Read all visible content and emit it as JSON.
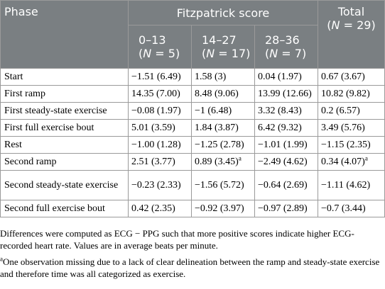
{
  "header": {
    "phase": "Phase",
    "group": "Fitzpatrick score",
    "total_line1": "Total",
    "total_line2": "(N = 29)",
    "subs": [
      {
        "range": "0–13",
        "n": "(N = 5)"
      },
      {
        "range": "14–27",
        "n": "(N = 17)"
      },
      {
        "range": "28–36",
        "n": "(N = 7)"
      }
    ]
  },
  "rows": [
    {
      "phase": "Start",
      "cells": [
        "−1.51 (6.49)",
        "1.58 (3)",
        "0.04 (1.97)",
        "0.67 (3.67)"
      ]
    },
    {
      "phase": "First ramp",
      "cells": [
        "14.35 (7.00)",
        "8.48 (9.06)",
        "13.99 (12.66)",
        "10.82 (9.82)"
      ]
    },
    {
      "phase": "First steady-state exercise",
      "cells": [
        "−0.08 (1.97)",
        "−1 (6.48)",
        "3.32 (8.43)",
        "0.2 (6.57)"
      ]
    },
    {
      "phase": "First full exercise bout",
      "cells": [
        "5.01 (3.59)",
        "1.84 (3.87)",
        "6.42 (9.32)",
        "3.49 (5.76)"
      ]
    },
    {
      "phase": "Rest",
      "cells": [
        "−1.00 (1.28)",
        "−1.25 (2.78)",
        "−1.01 (1.99)",
        "−1.15 (2.35)"
      ]
    },
    {
      "phase": "Second ramp",
      "cells": [
        "2.51 (3.77)",
        "0.89 (3.45)",
        "−2.49 (4.62)",
        "0.34 (4.07)"
      ]
    },
    {
      "phase": "Second steady-state exercise",
      "cells": [
        "−0.23 (2.33)",
        "−1.56 (5.72)",
        "−0.64 (2.69)",
        "−1.11 (4.62)"
      ]
    },
    {
      "phase": "Second full exercise bout",
      "cells": [
        "0.42 (2.35)",
        "−0.92 (3.97)",
        "−0.97 (2.89)",
        "−0.7 (3.44)"
      ]
    }
  ],
  "footnote_marker": "a",
  "notes": {
    "main": "Differences were computed as ECG − PPG such that more positive scores indicate higher ECG-recorded heart rate. Values are in average beats per minute.",
    "footnote": "One observation missing due to a lack of clear delineation between the ramp and steady-state exercise and therefore time was all categorized as exercise."
  },
  "colors": {
    "header_bg": "#7a7f82",
    "header_text": "#ffffff",
    "border": "#9a9a9a"
  }
}
